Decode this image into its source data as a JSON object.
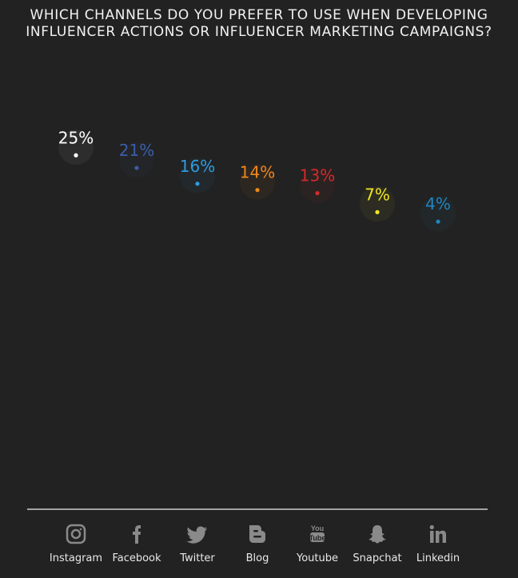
{
  "chart_data": {
    "type": "lollipop",
    "title": "WHICH CHANNELS DO YOU PREFER TO USE WHEN DEVELOPING INFLUENCER ACTIONS OR INFLUENCER MARKETING CAMPAIGNS?",
    "categories": [
      "Instagram",
      "Facebook",
      "Twitter",
      "Blog",
      "Youtube",
      "Snapchat",
      "Linkedin"
    ],
    "values": [
      25,
      21,
      16,
      14,
      13,
      7,
      4
    ],
    "data_labels": [
      "25%",
      "21%",
      "16%",
      "14%",
      "13%",
      "7%",
      "4%"
    ],
    "colors": [
      "#ffffff",
      "#3b5ea8",
      "#2f9be0",
      "#f0861d",
      "#d42a2a",
      "#f2e51e",
      "#1f86c0"
    ],
    "icons": [
      "instagram-icon",
      "facebook-icon",
      "twitter-icon",
      "blog-icon",
      "youtube-icon",
      "snapchat-icon",
      "linkedin-icon"
    ],
    "grid": false,
    "legend": "none"
  }
}
